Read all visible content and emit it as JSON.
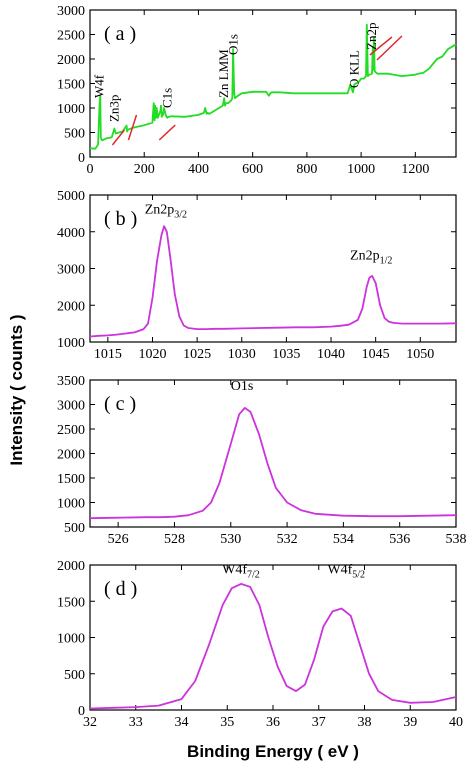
{
  "ylabel": "Intensity ( counts )",
  "xlabel": "Binding Energy ( eV )",
  "chart_data": [
    {
      "type": "line",
      "panel": "( a )",
      "color": "#22dd22",
      "xlim": [
        0,
        1350
      ],
      "ylim": [
        0,
        3000
      ],
      "xticks": [
        0,
        200,
        400,
        600,
        800,
        1000,
        1200
      ],
      "yticks": [
        0,
        500,
        1000,
        1500,
        2000,
        2500,
        3000
      ],
      "x": [
        0,
        20,
        30,
        35,
        38,
        40,
        42,
        45,
        60,
        80,
        90,
        92,
        95,
        120,
        135,
        137,
        140,
        160,
        200,
        230,
        235,
        238,
        240,
        243,
        246,
        250,
        260,
        262,
        265,
        268,
        270,
        273,
        280,
        285,
        288,
        292,
        300,
        350,
        400,
        420,
        425,
        430,
        435,
        440,
        470,
        490,
        495,
        498,
        502,
        510,
        520,
        525,
        528,
        532,
        535,
        545,
        560,
        600,
        650,
        660,
        665,
        670,
        700,
        750,
        800,
        850,
        900,
        950,
        955,
        960,
        965,
        970,
        975,
        980,
        990,
        1000,
        1010,
        1018,
        1021,
        1025,
        1030,
        1040,
        1043,
        1045,
        1047,
        1050,
        1060,
        1100,
        1150,
        1200,
        1210,
        1230,
        1250,
        1280,
        1300,
        1320,
        1350
      ],
      "y": [
        180,
        170,
        260,
        1050,
        1260,
        400,
        360,
        340,
        380,
        400,
        580,
        540,
        480,
        520,
        640,
        520,
        560,
        600,
        650,
        700,
        1100,
        750,
        1050,
        800,
        1000,
        800,
        950,
        1050,
        820,
        900,
        860,
        1000,
        850,
        800,
        820,
        820,
        830,
        820,
        860,
        900,
        1000,
        880,
        900,
        880,
        980,
        1050,
        1200,
        1050,
        1100,
        1100,
        1150,
        1200,
        2200,
        1300,
        1200,
        1250,
        1300,
        1330,
        1330,
        1250,
        1300,
        1320,
        1320,
        1300,
        1300,
        1300,
        1300,
        1300,
        1380,
        1480,
        1400,
        1320,
        1480,
        1500,
        1520,
        1600,
        1600,
        1650,
        2700,
        1650,
        1680,
        1700,
        2250,
        1780,
        2450,
        1750,
        1700,
        1700,
        1650,
        1680,
        1700,
        1720,
        1800,
        2000,
        2050,
        2200,
        2300
      ],
      "annotations": [
        {
          "label": "W4f",
          "x": 35
        },
        {
          "label": "Zn3p",
          "x": 90
        },
        {
          "label": "C1s",
          "x": 285
        },
        {
          "label": "Zn LMM",
          "x": 495
        },
        {
          "label": "O1s",
          "x": 530
        },
        {
          "label": "O KLL",
          "x": 975
        },
        {
          "label": "Zn2p",
          "x": 1040
        }
      ]
    },
    {
      "type": "line",
      "panel": "( b )",
      "color": "#cc33dd",
      "xlim": [
        1013,
        1054
      ],
      "ylim": [
        1000,
        5000
      ],
      "xticks": [
        1015,
        1020,
        1025,
        1030,
        1035,
        1040,
        1045,
        1050
      ],
      "yticks": [
        1000,
        2000,
        3000,
        4000,
        5000
      ],
      "x": [
        1013,
        1014,
        1015,
        1016,
        1017,
        1018,
        1019,
        1019.5,
        1020,
        1020.5,
        1021,
        1021.3,
        1021.6,
        1022,
        1022.5,
        1023,
        1023.5,
        1024,
        1025,
        1026,
        1027,
        1028,
        1030,
        1032,
        1034,
        1036,
        1038,
        1040,
        1041,
        1042,
        1043,
        1043.5,
        1044,
        1044.3,
        1044.6,
        1045,
        1045.5,
        1046,
        1046.5,
        1047,
        1048,
        1050,
        1052,
        1054
      ],
      "y": [
        1150,
        1170,
        1180,
        1200,
        1230,
        1260,
        1350,
        1500,
        2200,
        3200,
        3900,
        4150,
        4000,
        3300,
        2300,
        1700,
        1450,
        1380,
        1350,
        1350,
        1360,
        1360,
        1370,
        1380,
        1390,
        1400,
        1400,
        1420,
        1440,
        1470,
        1600,
        1900,
        2500,
        2750,
        2800,
        2600,
        2000,
        1650,
        1550,
        1520,
        1500,
        1500,
        1500,
        1510
      ],
      "annotations": [
        {
          "label": "Zn2p",
          "sub": "3/2",
          "x": 1021.5,
          "y": 4500
        },
        {
          "label": "Zn2p",
          "sub": "1/2",
          "x": 1044.5,
          "y": 3250
        }
      ]
    },
    {
      "type": "line",
      "panel": "( c )",
      "color": "#cc33dd",
      "xlim": [
        525,
        538
      ],
      "ylim": [
        500,
        3500
      ],
      "xticks": [
        526,
        528,
        530,
        532,
        534,
        536,
        538
      ],
      "yticks": [
        500,
        1000,
        1500,
        2000,
        2500,
        3000,
        3500
      ],
      "x": [
        525,
        526,
        527,
        527.5,
        528,
        528.5,
        529,
        529.3,
        529.6,
        530,
        530.3,
        530.5,
        530.7,
        531,
        531.3,
        531.6,
        532,
        532.5,
        533,
        534,
        535,
        536,
        537,
        538
      ],
      "y": [
        680,
        690,
        700,
        700,
        710,
        740,
        830,
        1000,
        1400,
        2200,
        2800,
        2930,
        2850,
        2400,
        1800,
        1300,
        1000,
        840,
        770,
        730,
        720,
        720,
        730,
        740
      ],
      "annotations": [
        {
          "label": "O1s",
          "x": 530.4,
          "y": 3300
        }
      ]
    },
    {
      "type": "line",
      "panel": "( d )",
      "color": "#cc33dd",
      "xlim": [
        32,
        40
      ],
      "ylim": [
        0,
        2000
      ],
      "xticks": [
        32,
        33,
        34,
        35,
        36,
        37,
        38,
        39,
        40
      ],
      "yticks": [
        0,
        500,
        1000,
        1500,
        2000
      ],
      "x": [
        32,
        32.5,
        33,
        33.5,
        34,
        34.3,
        34.6,
        34.9,
        35.1,
        35.3,
        35.5,
        35.7,
        35.9,
        36.1,
        36.3,
        36.5,
        36.7,
        36.9,
        37.1,
        37.3,
        37.5,
        37.7,
        37.9,
        38.1,
        38.3,
        38.6,
        39,
        39.5,
        40
      ],
      "y": [
        20,
        30,
        40,
        60,
        150,
        400,
        900,
        1450,
        1680,
        1740,
        1700,
        1450,
        1000,
        600,
        330,
        260,
        350,
        700,
        1150,
        1360,
        1400,
        1300,
        900,
        500,
        260,
        140,
        100,
        110,
        180
      ],
      "annotations": [
        {
          "label": "W4f",
          "sub": "7/2",
          "x": 35.3,
          "y": 1880
        },
        {
          "label": "W4f",
          "sub": "5/2",
          "x": 37.6,
          "y": 1880
        }
      ]
    }
  ]
}
